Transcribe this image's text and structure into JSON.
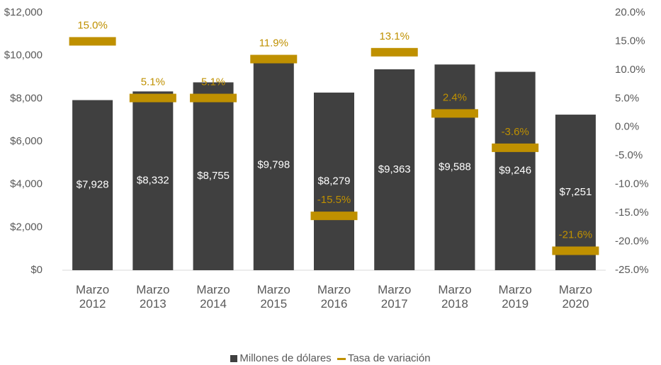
{
  "chart_data": {
    "type": "bar",
    "categories": [
      "Marzo 2012",
      "Marzo 2013",
      "Marzo 2014",
      "Marzo 2015",
      "Marzo 2016",
      "Marzo 2017",
      "Marzo 2018",
      "Marzo 2019",
      "Marzo 2020"
    ],
    "series": [
      {
        "name": "Millones de dólares",
        "type": "bar",
        "color": "#404040",
        "values": [
          7928,
          8332,
          8755,
          9798,
          8279,
          9363,
          9588,
          9246,
          7251
        ],
        "value_labels": [
          "$7,928",
          "$8,332",
          "$8,755",
          "$9,798",
          "$8,279",
          "$9,363",
          "$9,588",
          "$9,246",
          "$7,251"
        ]
      },
      {
        "name": "Tasa de variación",
        "type": "marker",
        "axis": "y2",
        "color": "#bf9000",
        "values": [
          15.0,
          5.1,
          5.1,
          11.9,
          -15.5,
          13.1,
          2.4,
          -3.6,
          -21.6
        ],
        "value_labels": [
          "15.0%",
          "5.1%",
          "5.1%",
          "11.9%",
          "-15.5%",
          "13.1%",
          "2.4%",
          "-3.6%",
          "-21.6%"
        ]
      }
    ],
    "ylim": [
      0,
      12000
    ],
    "yticks": [
      {
        "value": 0,
        "label": "$0"
      },
      {
        "value": 2000,
        "label": "$2,000"
      },
      {
        "value": 4000,
        "label": "$4,000"
      },
      {
        "value": 6000,
        "label": "$6,000"
      },
      {
        "value": 8000,
        "label": "$8,000"
      },
      {
        "value": 10000,
        "label": "$10,000"
      },
      {
        "value": 12000,
        "label": "$12,000"
      }
    ],
    "y2lim": [
      -25,
      20
    ],
    "y2ticks": [
      {
        "value": -25,
        "label": "-25.0%"
      },
      {
        "value": -20,
        "label": "-20.0%"
      },
      {
        "value": -15,
        "label": "-15.0%"
      },
      {
        "value": -10,
        "label": "-10.0%"
      },
      {
        "value": -5,
        "label": "-5.0%"
      },
      {
        "value": 0,
        "label": "0.0%"
      },
      {
        "value": 5,
        "label": "5.0%"
      },
      {
        "value": 10,
        "label": "10.0%"
      },
      {
        "value": 15,
        "label": "15.0%"
      },
      {
        "value": 20,
        "label": "20.0%"
      }
    ],
    "legend": "bottom"
  }
}
